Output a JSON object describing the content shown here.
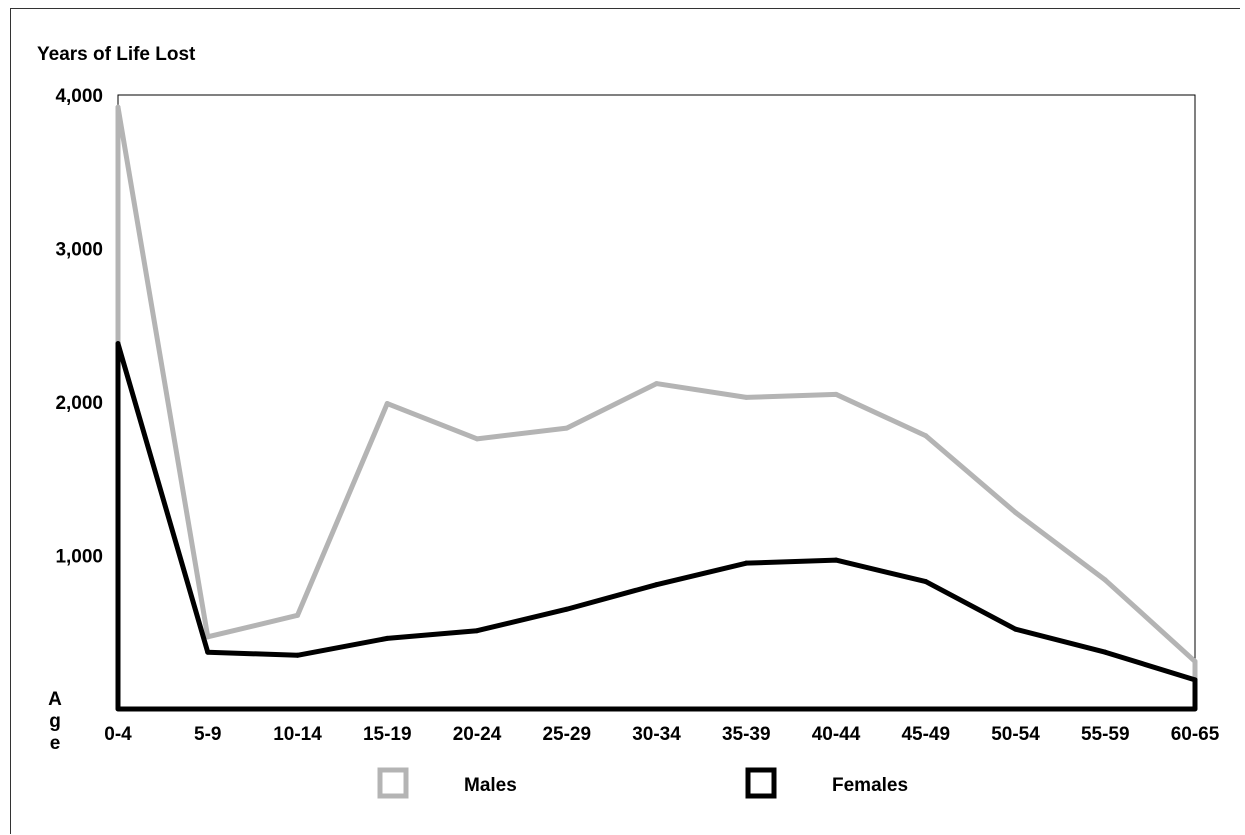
{
  "chart_data": {
    "type": "area",
    "title": "Years of Life Lost",
    "xlabel": "Age",
    "ylim": [
      0,
      4000
    ],
    "yticks": [
      "4,000",
      "3,000",
      "2,000",
      "1,000"
    ],
    "ytick_values": [
      4000,
      3000,
      2000,
      1000
    ],
    "categories": [
      "0-4",
      "5-9",
      "10-14",
      "15-19",
      "20-24",
      "25-29",
      "30-34",
      "35-39",
      "40-44",
      "45-49",
      "50-54",
      "55-59",
      "60-65"
    ],
    "grid": false,
    "legend": "bottom",
    "series": [
      {
        "name": "Males",
        "color": "#b4b4b4",
        "values": [
          3920,
          470,
          610,
          1990,
          1760,
          1830,
          2120,
          2030,
          2050,
          1780,
          1280,
          840,
          310
        ]
      },
      {
        "name": "Females",
        "color": "#000000",
        "values": [
          2380,
          370,
          350,
          460,
          510,
          650,
          810,
          950,
          970,
          830,
          520,
          370,
          190
        ]
      }
    ]
  }
}
